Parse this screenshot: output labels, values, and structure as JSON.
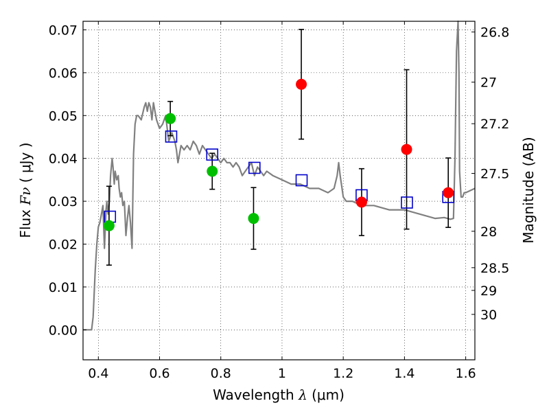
{
  "chart_data": {
    "type": "scatter",
    "title": "",
    "xlabel": "Wavelength  λ (μm)",
    "ylabel": "Flux  Fν  ( μJy )",
    "ylabel_right": "Magnitude (AB)",
    "xlim": [
      0.35,
      1.63
    ],
    "ylim": [
      -0.007,
      0.072
    ],
    "grid": true,
    "grid_style": "dotted",
    "x_ticks": [
      0.4,
      0.6,
      0.8,
      1.0,
      1.2,
      1.4,
      1.6
    ],
    "x_tick_labels": [
      "0.4",
      "0.6",
      "0.8",
      "1",
      "1.2",
      "1.4",
      "1.6"
    ],
    "y_ticks": [
      0.0,
      0.01,
      0.02,
      0.03,
      0.04,
      0.05,
      0.06,
      0.07
    ],
    "y_tick_labels": [
      "0.00",
      "0.01",
      "0.02",
      "0.03",
      "0.04",
      "0.05",
      "0.06",
      "0.07"
    ],
    "y2_ticks": [
      {
        "label": "26.8",
        "flux": 0.0695
      },
      {
        "label": "27",
        "flux": 0.0578
      },
      {
        "label": "27.2",
        "flux": 0.0481
      },
      {
        "label": "27.5",
        "flux": 0.0365
      },
      {
        "label": "28",
        "flux": 0.023
      },
      {
        "label": "28.5",
        "flux": 0.0145
      },
      {
        "label": "29",
        "flux": 0.0092
      },
      {
        "label": "30",
        "flux": 0.0036
      }
    ],
    "series": [
      {
        "marker": "line",
        "color": "#808080",
        "x": [
          0.35,
          0.378,
          0.383,
          0.386,
          0.39,
          0.395,
          0.4,
          0.405,
          0.41,
          0.415,
          0.42,
          0.425,
          0.428,
          0.432,
          0.436,
          0.44,
          0.445,
          0.448,
          0.452,
          0.455,
          0.46,
          0.465,
          0.468,
          0.472,
          0.476,
          0.48,
          0.485,
          0.49,
          0.495,
          0.5,
          0.505,
          0.51,
          0.515,
          0.52,
          0.525,
          0.53,
          0.54,
          0.55,
          0.555,
          0.56,
          0.565,
          0.57,
          0.575,
          0.58,
          0.585,
          0.59,
          0.6,
          0.61,
          0.62,
          0.63,
          0.64,
          0.65,
          0.655,
          0.66,
          0.665,
          0.67,
          0.68,
          0.69,
          0.7,
          0.71,
          0.72,
          0.73,
          0.74,
          0.75,
          0.76,
          0.77,
          0.78,
          0.79,
          0.8,
          0.81,
          0.82,
          0.83,
          0.84,
          0.85,
          0.86,
          0.865,
          0.87,
          0.88,
          0.89,
          0.9,
          0.91,
          0.92,
          0.93,
          0.94,
          0.95,
          0.97,
          1.0,
          1.03,
          1.06,
          1.09,
          1.12,
          1.15,
          1.17,
          1.18,
          1.185,
          1.19,
          1.2,
          1.21,
          1.23,
          1.26,
          1.3,
          1.35,
          1.4,
          1.45,
          1.5,
          1.53,
          1.55,
          1.56,
          1.565,
          1.57,
          1.575,
          1.578,
          1.58,
          1.585,
          1.59,
          1.595,
          1.6,
          1.63
        ],
        "y": [
          0.0,
          0.0,
          0.003,
          0.008,
          0.014,
          0.02,
          0.024,
          0.025,
          0.027,
          0.029,
          0.019,
          0.028,
          0.03,
          0.027,
          0.03,
          0.036,
          0.04,
          0.038,
          0.034,
          0.037,
          0.035,
          0.036,
          0.033,
          0.031,
          0.032,
          0.029,
          0.03,
          0.022,
          0.026,
          0.029,
          0.025,
          0.019,
          0.041,
          0.048,
          0.05,
          0.05,
          0.049,
          0.052,
          0.053,
          0.051,
          0.053,
          0.052,
          0.049,
          0.053,
          0.051,
          0.049,
          0.047,
          0.048,
          0.05,
          0.044,
          0.046,
          0.044,
          0.042,
          0.039,
          0.041,
          0.043,
          0.042,
          0.043,
          0.042,
          0.044,
          0.043,
          0.041,
          0.043,
          0.042,
          0.041,
          0.04,
          0.041,
          0.04,
          0.039,
          0.04,
          0.039,
          0.039,
          0.038,
          0.039,
          0.038,
          0.037,
          0.036,
          0.037,
          0.038,
          0.039,
          0.036,
          0.038,
          0.037,
          0.036,
          0.037,
          0.036,
          0.035,
          0.034,
          0.034,
          0.033,
          0.033,
          0.032,
          0.033,
          0.036,
          0.039,
          0.036,
          0.031,
          0.03,
          0.03,
          0.029,
          0.029,
          0.028,
          0.028,
          0.027,
          0.026,
          0.0262,
          0.0258,
          0.026,
          0.04,
          0.065,
          0.072,
          0.06,
          0.037,
          0.031,
          0.031,
          0.032,
          0.032,
          0.033
        ]
      },
      {
        "marker": "circle",
        "color": "#00bf00",
        "x": [
          0.435,
          0.635,
          0.772,
          0.907
        ],
        "y": [
          0.0243,
          0.0493,
          0.037,
          0.026
        ],
        "err": [
          0.0092,
          0.004,
          0.0042,
          0.0072
        ]
      },
      {
        "marker": "circle",
        "color": "#ff0000",
        "x": [
          1.063,
          1.26,
          1.407,
          1.543
        ],
        "y": [
          0.0573,
          0.0298,
          0.0421,
          0.032
        ],
        "err": [
          0.0128,
          0.0078,
          0.0186,
          0.0081
        ]
      },
      {
        "marker": "open-square",
        "color": "#0000cc",
        "x": [
          0.438,
          0.638,
          0.772,
          0.91,
          1.064,
          1.26,
          1.408,
          1.543
        ],
        "y": [
          0.0264,
          0.0451,
          0.0409,
          0.0378,
          0.0349,
          0.0314,
          0.0297,
          0.031
        ]
      }
    ]
  }
}
